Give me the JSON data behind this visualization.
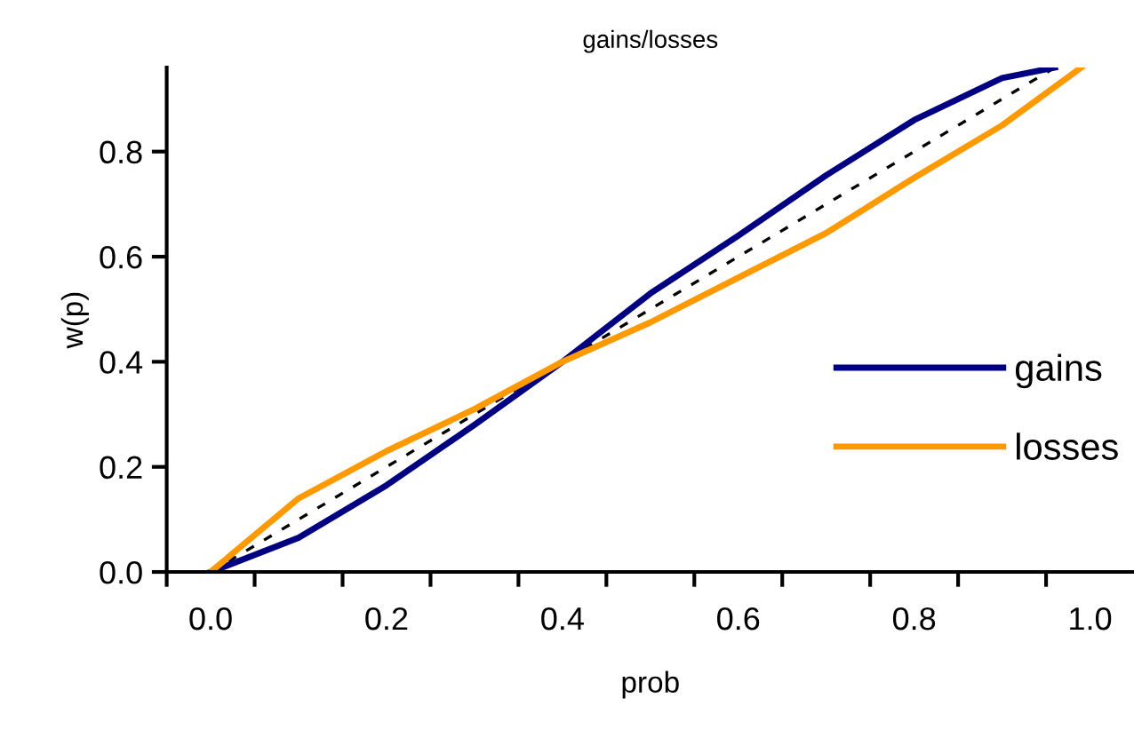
{
  "chart_data": {
    "type": "line",
    "title": "gains/losses",
    "xlabel": "prob",
    "ylabel": "w(p)",
    "xlim": [
      -0.05,
      1.05
    ],
    "ylim": [
      0,
      0.96
    ],
    "xticks": [
      {
        "value": 0.0,
        "label": "0.0"
      },
      {
        "value": 0.2,
        "label": "0.2"
      },
      {
        "value": 0.4,
        "label": "0.4"
      },
      {
        "value": 0.6,
        "label": "0.6"
      },
      {
        "value": 0.8,
        "label": "0.8"
      },
      {
        "value": 1.0,
        "label": "1.0"
      },
      {
        "value": -0.05,
        "label": null
      },
      {
        "value": 0.05,
        "label": null
      },
      {
        "value": 0.15,
        "label": null
      },
      {
        "value": 0.25,
        "label": null
      },
      {
        "value": 0.35,
        "label": null
      },
      {
        "value": 0.45,
        "label": null
      },
      {
        "value": 0.55,
        "label": null
      },
      {
        "value": 0.65,
        "label": null
      },
      {
        "value": 0.75,
        "label": null
      },
      {
        "value": 0.85,
        "label": null
      },
      {
        "value": 0.95,
        "label": null
      }
    ],
    "yticks": [
      {
        "value": 0,
        "label": "0.0"
      },
      {
        "value": 0.2,
        "label": "0.2"
      },
      {
        "value": 0.4,
        "label": "0.4"
      },
      {
        "value": 0.6,
        "label": "0.6"
      },
      {
        "value": 0.8,
        "label": "0.8"
      }
    ],
    "legend": "right",
    "grid": false,
    "marker": "none",
    "series": [
      {
        "color": "#000000",
        "line_style": "dashed",
        "x": [
          0,
          0.96
        ],
        "values": [
          0,
          0.96
        ]
      },
      {
        "name": "gains",
        "color": "#000080",
        "line_style": "solid",
        "x": [
          0,
          0.1,
          0.2,
          0.3,
          0.4,
          0.5,
          0.6,
          0.7,
          0.8,
          0.9,
          0.96
        ],
        "values": [
          0,
          0.065,
          0.165,
          0.28,
          0.4,
          0.53,
          0.64,
          0.755,
          0.86,
          0.94,
          0.96
        ]
      },
      {
        "name": "losses",
        "color": "#ff9900",
        "line_style": "solid",
        "x": [
          0,
          0.1,
          0.2,
          0.3,
          0.4,
          0.5,
          0.6,
          0.7,
          0.8,
          0.9,
          0.99
        ],
        "values": [
          0,
          0.14,
          0.23,
          0.31,
          0.4,
          0.475,
          0.56,
          0.645,
          0.75,
          0.85,
          0.96
        ]
      }
    ]
  }
}
